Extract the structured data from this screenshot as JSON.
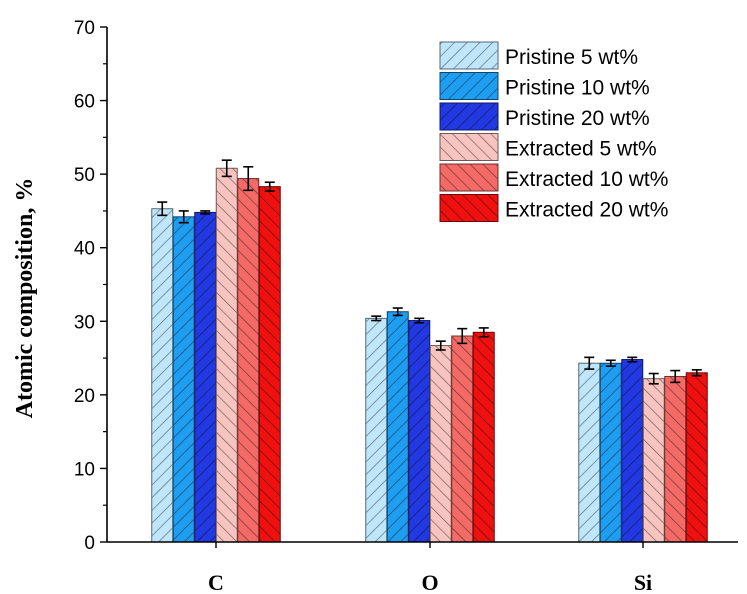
{
  "chart_data": {
    "type": "bar",
    "title": "",
    "xlabel": "",
    "ylabel": "Atomic composition, %",
    "ylim": [
      0,
      70
    ],
    "yticks": [
      0,
      10,
      20,
      30,
      40,
      50,
      60,
      70
    ],
    "categories": [
      "C",
      "O",
      "Si"
    ],
    "legend_position": "top-right",
    "grid": false,
    "series": [
      {
        "name": "Pristine 5 wt%",
        "values": [
          45.3,
          30.4,
          24.3
        ],
        "errors": [
          0.9,
          0.3,
          0.8
        ],
        "color": "#bfe6fa",
        "hatch": "forward"
      },
      {
        "name": "Pristine 10 wt%",
        "values": [
          44.2,
          31.3,
          24.3
        ],
        "errors": [
          0.8,
          0.5,
          0.4
        ],
        "color": "#1f9df0",
        "hatch": "forward"
      },
      {
        "name": "Pristine 20 wt%",
        "values": [
          44.8,
          30.1,
          24.8
        ],
        "errors": [
          0.2,
          0.3,
          0.3
        ],
        "color": "#2238e0",
        "hatch": "forward"
      },
      {
        "name": "Extracted 5 wt%",
        "values": [
          50.8,
          26.7,
          22.2
        ],
        "errors": [
          1.1,
          0.6,
          0.7
        ],
        "color": "#f7c4c0",
        "hatch": "back"
      },
      {
        "name": "Extracted 10 wt%",
        "values": [
          49.4,
          28.0,
          22.5
        ],
        "errors": [
          1.6,
          1.0,
          0.8
        ],
        "color": "#f36a66",
        "hatch": "back"
      },
      {
        "name": "Extracted 20 wt%",
        "values": [
          48.3,
          28.5,
          23.0
        ],
        "errors": [
          0.6,
          0.6,
          0.4
        ],
        "color": "#ef1010",
        "hatch": "back"
      }
    ]
  }
}
